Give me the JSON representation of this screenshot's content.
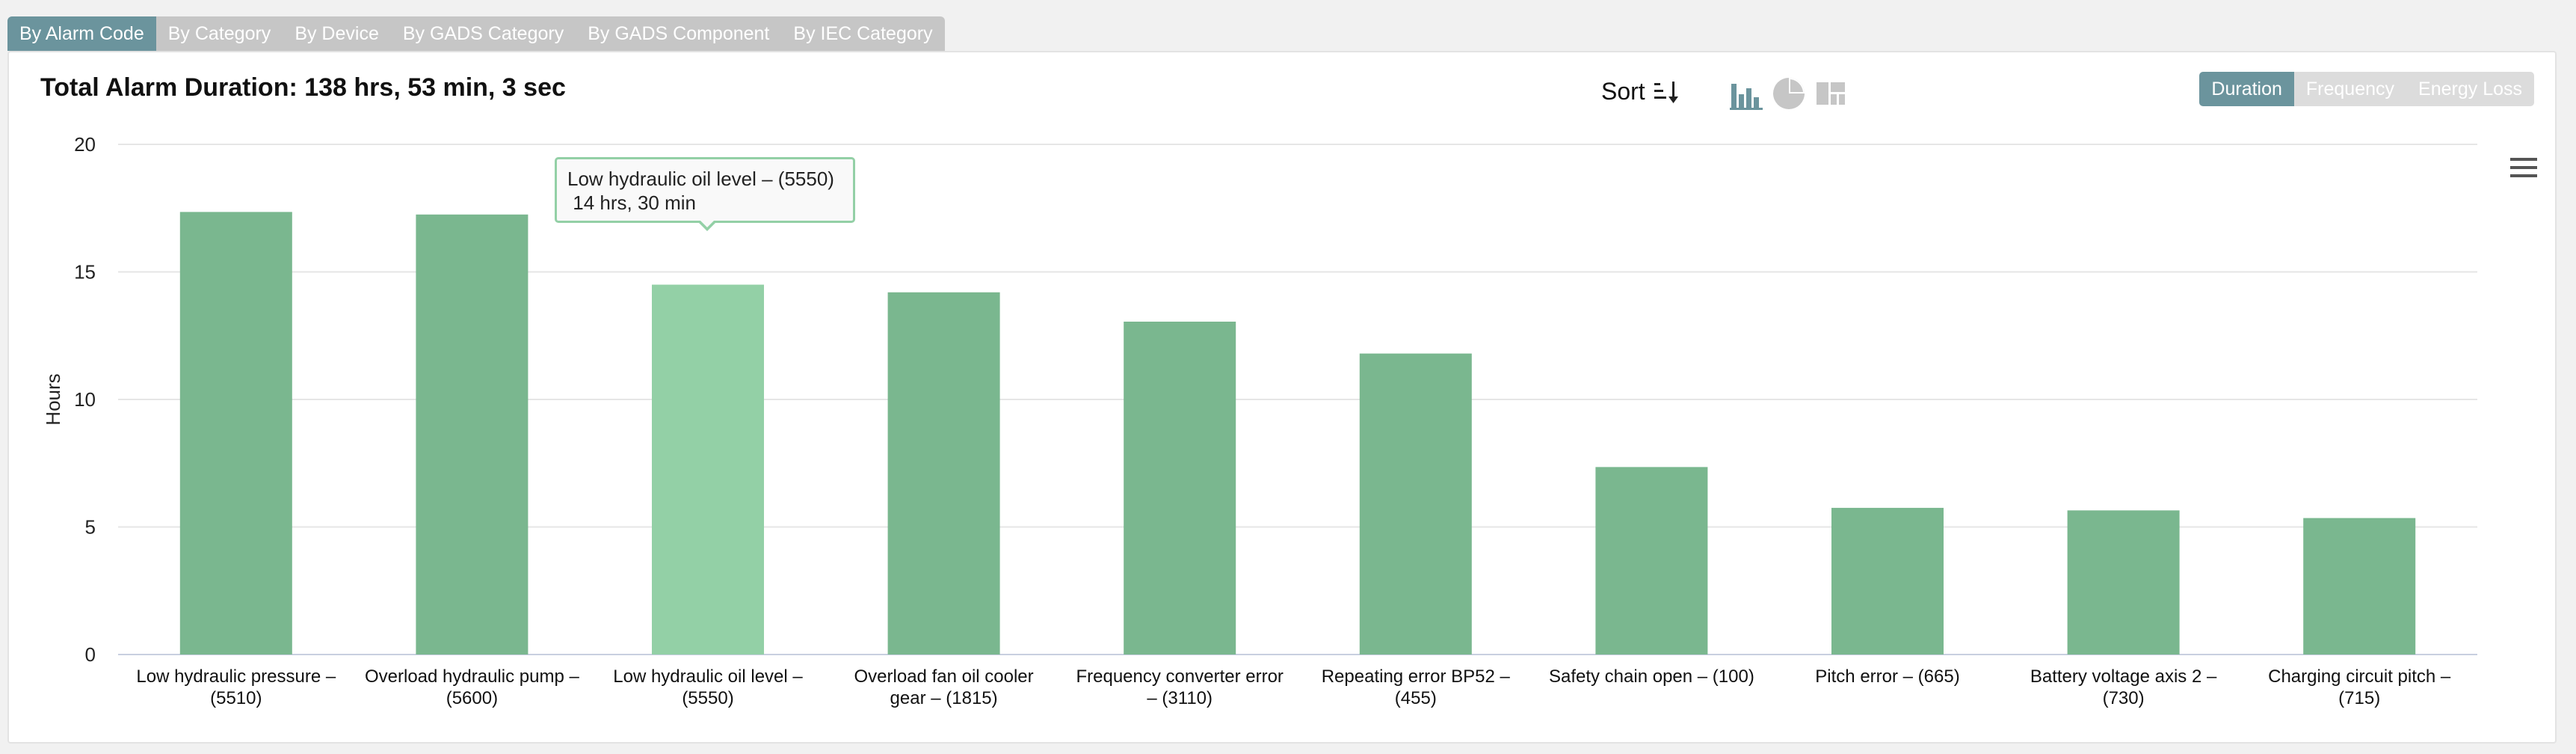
{
  "tabs": [
    {
      "label": "By Alarm Code",
      "active": true
    },
    {
      "label": "By Category",
      "active": false
    },
    {
      "label": "By Device",
      "active": false
    },
    {
      "label": "By GADS Category",
      "active": false
    },
    {
      "label": "By GADS Component",
      "active": false
    },
    {
      "label": "By IEC Category",
      "active": false
    }
  ],
  "header": {
    "title": "Total Alarm Duration: 138 hrs, 53 min, 3 sec",
    "sort_label": "Sort"
  },
  "chart_type_icons": [
    "bar-chart-icon",
    "pie-chart-icon",
    "treemap-icon"
  ],
  "metric_toggle": [
    {
      "label": "Duration",
      "active": true
    },
    {
      "label": "Frequency",
      "active": false
    },
    {
      "label": "Energy Loss",
      "active": false
    }
  ],
  "tooltip": {
    "line1": "Low hydraulic oil level – (5550)",
    "line2": "14 hrs, 30 min"
  },
  "colors": {
    "bar": "#7ab78f",
    "bar_hover": "#93d0a6",
    "tab_active": "#6b949d",
    "tab_inactive": "#c6c6c6"
  },
  "chart_data": {
    "type": "bar",
    "ylabel": "Hours",
    "ylim": [
      0,
      20
    ],
    "yticks": [
      0,
      5,
      10,
      15,
      20
    ],
    "categories": [
      [
        "Low hydraulic pressure –",
        "(5510)"
      ],
      [
        "Overload hydraulic pump –",
        "(5600)"
      ],
      [
        "Low hydraulic oil level –",
        "(5550)"
      ],
      [
        "Overload fan oil cooler",
        "gear – (1815)"
      ],
      [
        "Frequency converter error",
        "– (3110)"
      ],
      [
        "Repeating error BP52 –",
        "(455)"
      ],
      [
        "Safety chain open – (100)"
      ],
      [
        "Pitch error – (665)"
      ],
      [
        "Battery voltage axis 2 –",
        "(730)"
      ],
      [
        "Charging circuit pitch –",
        "(715)"
      ]
    ],
    "values": [
      17.35,
      17.25,
      14.5,
      14.2,
      13.05,
      11.8,
      7.35,
      5.75,
      5.65,
      5.35
    ],
    "highlighted_index": 2,
    "grid": true
  }
}
